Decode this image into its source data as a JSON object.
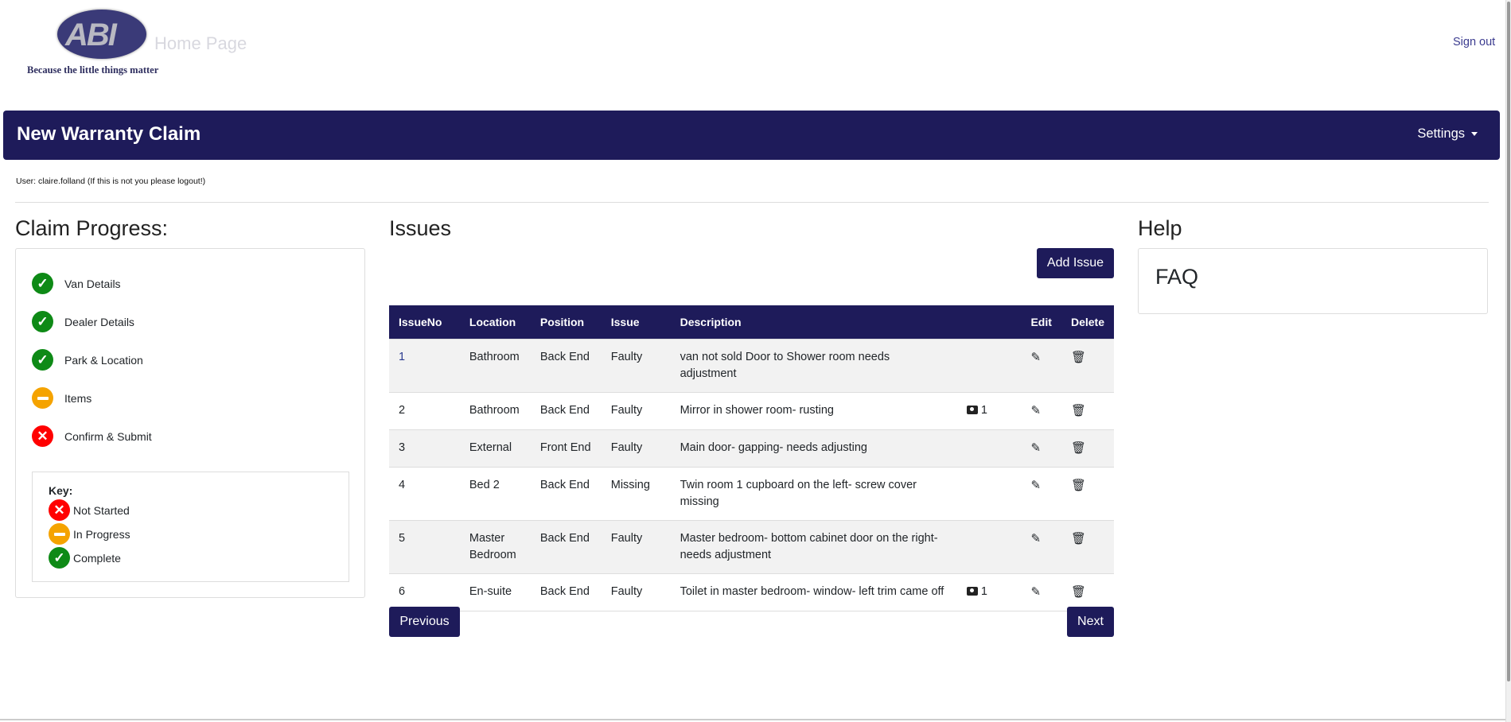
{
  "header": {
    "logo_text": "ABI",
    "logo_alt": "Home Page",
    "tagline": "Because the little things matter",
    "sign_out": "Sign out"
  },
  "navbar": {
    "title": "New Warranty Claim",
    "settings": "Settings"
  },
  "user_line": "User: claire.folland (If this is not you please logout!)",
  "progress": {
    "title": "Claim Progress:",
    "items": [
      {
        "label": "Van Details",
        "status": "complete"
      },
      {
        "label": "Dealer Details",
        "status": "complete"
      },
      {
        "label": "Park & Location",
        "status": "complete"
      },
      {
        "label": "Items",
        "status": "in-progress"
      },
      {
        "label": "Confirm & Submit",
        "status": "not-started"
      }
    ],
    "key": {
      "title": "Key:",
      "not_started": "Not Started",
      "in_progress": "In Progress",
      "complete": "Complete"
    }
  },
  "issues": {
    "title": "Issues",
    "add_label": "Add Issue",
    "columns": [
      "IssueNo",
      "Location",
      "Position",
      "Issue",
      "Description",
      "",
      "Edit",
      "Delete"
    ],
    "rows": [
      {
        "no": "1",
        "location": "Bathroom",
        "position": "Back End",
        "issue": "Faulty",
        "description": "van not sold Door to Shower room needs adjustment",
        "photos": ""
      },
      {
        "no": "2",
        "location": "Bathroom",
        "position": "Back End",
        "issue": "Faulty",
        "description": "Mirror in shower room- rusting",
        "photos": "1"
      },
      {
        "no": "3",
        "location": "External",
        "position": "Front End",
        "issue": "Faulty",
        "description": "Main door- gapping- needs adjusting",
        "photos": ""
      },
      {
        "no": "4",
        "location": "Bed 2",
        "position": "Back End",
        "issue": "Missing",
        "description": "Twin room 1 cupboard on the left- screw cover missing",
        "photos": ""
      },
      {
        "no": "5",
        "location": "Master Bedroom",
        "position": "Back End",
        "issue": "Faulty",
        "description": "Master bedroom- bottom cabinet door on the right- needs adjustment",
        "photos": ""
      },
      {
        "no": "6",
        "location": "En-suite",
        "position": "Back End",
        "issue": "Faulty",
        "description": "Toilet in master bedroom- window- left trim came off",
        "photos": "1"
      }
    ],
    "previous": "Previous",
    "next": "Next"
  },
  "help": {
    "title": "Help",
    "faq": "FAQ"
  },
  "colors": {
    "brand": "#1e1b5a",
    "complete": "#0e8a16",
    "in_progress": "#f5a300",
    "not_started": "#ff0000"
  }
}
